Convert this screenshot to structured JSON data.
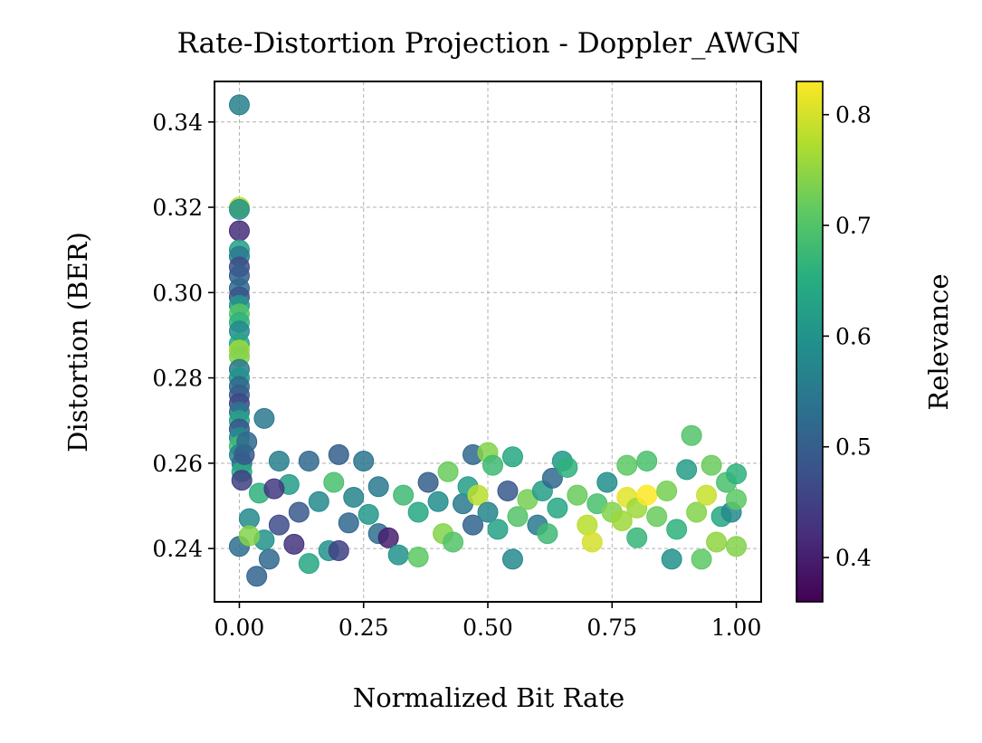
{
  "chart_data": {
    "type": "scatter",
    "title": "Rate-Distortion Projection - Doppler_AWGN",
    "xlabel": "Normalized Bit Rate",
    "ylabel": "Distortion (BER)",
    "xlim": [
      -0.05,
      1.05
    ],
    "ylim": [
      0.2275,
      0.3495
    ],
    "xticks": [
      "0.00",
      "0.25",
      "0.50",
      "0.75",
      "1.00"
    ],
    "yticks": [
      "0.24",
      "0.26",
      "0.28",
      "0.30",
      "0.32",
      "0.34"
    ],
    "grid": true,
    "colorbar": {
      "label": "Relevance",
      "colormap": "viridis",
      "range": [
        0.36,
        0.83
      ],
      "ticks": [
        "0.4",
        "0.5",
        "0.6",
        "0.7",
        "0.8"
      ]
    },
    "points_summary": "Dense band of points at distortion 0.24–0.26 across rate 0–1; vertical column at rate ≈ 0 from 0.24 up to 0.344.",
    "points": [
      [
        0.0,
        0.344,
        0.56
      ],
      [
        0.0,
        0.32,
        0.78
      ],
      [
        0.0,
        0.3195,
        0.6
      ],
      [
        0.0,
        0.3145,
        0.42
      ],
      [
        0.0,
        0.31,
        0.62
      ],
      [
        0.0,
        0.3085,
        0.55
      ],
      [
        0.0,
        0.306,
        0.47
      ],
      [
        0.0,
        0.304,
        0.5
      ],
      [
        0.0,
        0.301,
        0.52
      ],
      [
        0.0,
        0.299,
        0.48
      ],
      [
        0.0,
        0.297,
        0.61
      ],
      [
        0.0,
        0.295,
        0.7
      ],
      [
        0.0,
        0.293,
        0.66
      ],
      [
        0.0,
        0.291,
        0.58
      ],
      [
        0.0,
        0.288,
        0.64
      ],
      [
        0.0,
        0.2865,
        0.76
      ],
      [
        0.0,
        0.285,
        0.74
      ],
      [
        0.0,
        0.282,
        0.55
      ],
      [
        0.0,
        0.28,
        0.6
      ],
      [
        0.0,
        0.278,
        0.52
      ],
      [
        0.0,
        0.276,
        0.5
      ],
      [
        0.0,
        0.274,
        0.46
      ],
      [
        0.0,
        0.272,
        0.54
      ],
      [
        0.0,
        0.27,
        0.63
      ],
      [
        0.0,
        0.268,
        0.48
      ],
      [
        0.0,
        0.266,
        0.59
      ],
      [
        0.0,
        0.264,
        0.68
      ],
      [
        0.0,
        0.262,
        0.57
      ],
      [
        0.005,
        0.26,
        0.53
      ],
      [
        0.005,
        0.258,
        0.65
      ],
      [
        0.005,
        0.256,
        0.45
      ],
      [
        0.01,
        0.262,
        0.49
      ],
      [
        0.015,
        0.265,
        0.52
      ],
      [
        0.05,
        0.2705,
        0.55
      ],
      [
        0.0,
        0.2405,
        0.53
      ],
      [
        0.02,
        0.247,
        0.58
      ],
      [
        0.035,
        0.2335,
        0.51
      ],
      [
        0.06,
        0.2375,
        0.52
      ],
      [
        0.05,
        0.242,
        0.6
      ],
      [
        0.02,
        0.243,
        0.74
      ],
      [
        0.08,
        0.2455,
        0.47
      ],
      [
        0.11,
        0.241,
        0.43
      ],
      [
        0.14,
        0.2365,
        0.64
      ],
      [
        0.18,
        0.2395,
        0.6
      ],
      [
        0.2,
        0.2395,
        0.45
      ],
      [
        0.22,
        0.246,
        0.52
      ],
      [
        0.08,
        0.2605,
        0.56
      ],
      [
        0.14,
        0.2605,
        0.52
      ],
      [
        0.2,
        0.262,
        0.5
      ],
      [
        0.25,
        0.2605,
        0.54
      ],
      [
        0.1,
        0.255,
        0.62
      ],
      [
        0.16,
        0.251,
        0.58
      ],
      [
        0.04,
        0.253,
        0.66
      ],
      [
        0.12,
        0.2485,
        0.49
      ],
      [
        0.07,
        0.254,
        0.44
      ],
      [
        0.19,
        0.2555,
        0.69
      ],
      [
        0.23,
        0.252,
        0.57
      ],
      [
        0.26,
        0.248,
        0.61
      ],
      [
        0.28,
        0.2435,
        0.53
      ],
      [
        0.3,
        0.2425,
        0.4
      ],
      [
        0.32,
        0.2385,
        0.6
      ],
      [
        0.28,
        0.2545,
        0.55
      ],
      [
        0.33,
        0.2525,
        0.68
      ],
      [
        0.36,
        0.2485,
        0.64
      ],
      [
        0.36,
        0.238,
        0.71
      ],
      [
        0.38,
        0.2555,
        0.5
      ],
      [
        0.4,
        0.251,
        0.59
      ],
      [
        0.41,
        0.2435,
        0.74
      ],
      [
        0.42,
        0.258,
        0.72
      ],
      [
        0.43,
        0.2415,
        0.7
      ],
      [
        0.45,
        0.2505,
        0.55
      ],
      [
        0.46,
        0.2545,
        0.62
      ],
      [
        0.47,
        0.2455,
        0.51
      ],
      [
        0.48,
        0.2525,
        0.78
      ],
      [
        0.47,
        0.262,
        0.52
      ],
      [
        0.5,
        0.2625,
        0.74
      ],
      [
        0.51,
        0.2595,
        0.68
      ],
      [
        0.5,
        0.2485,
        0.57
      ],
      [
        0.52,
        0.2445,
        0.63
      ],
      [
        0.54,
        0.2535,
        0.49
      ],
      [
        0.55,
        0.2615,
        0.64
      ],
      [
        0.55,
        0.2375,
        0.58
      ],
      [
        0.56,
        0.2475,
        0.7
      ],
      [
        0.58,
        0.2515,
        0.73
      ],
      [
        0.6,
        0.2455,
        0.55
      ],
      [
        0.61,
        0.2535,
        0.62
      ],
      [
        0.62,
        0.2435,
        0.68
      ],
      [
        0.63,
        0.2565,
        0.52
      ],
      [
        0.64,
        0.2495,
        0.64
      ],
      [
        0.65,
        0.2605,
        0.61
      ],
      [
        0.66,
        0.259,
        0.66
      ],
      [
        0.68,
        0.2525,
        0.72
      ],
      [
        0.7,
        0.2455,
        0.78
      ],
      [
        0.71,
        0.2415,
        0.8
      ],
      [
        0.72,
        0.2505,
        0.69
      ],
      [
        0.74,
        0.2555,
        0.59
      ],
      [
        0.75,
        0.2485,
        0.74
      ],
      [
        0.77,
        0.2465,
        0.76
      ],
      [
        0.78,
        0.2595,
        0.71
      ],
      [
        0.78,
        0.252,
        0.81
      ],
      [
        0.8,
        0.2495,
        0.76
      ],
      [
        0.8,
        0.2425,
        0.67
      ],
      [
        0.82,
        0.2605,
        0.69
      ],
      [
        0.82,
        0.2525,
        0.83
      ],
      [
        0.84,
        0.2475,
        0.72
      ],
      [
        0.86,
        0.2535,
        0.73
      ],
      [
        0.87,
        0.2375,
        0.6
      ],
      [
        0.88,
        0.2445,
        0.66
      ],
      [
        0.9,
        0.2585,
        0.62
      ],
      [
        0.91,
        0.2665,
        0.7
      ],
      [
        0.92,
        0.2485,
        0.74
      ],
      [
        0.93,
        0.2375,
        0.71
      ],
      [
        0.94,
        0.2525,
        0.79
      ],
      [
        0.95,
        0.2595,
        0.72
      ],
      [
        0.96,
        0.2415,
        0.75
      ],
      [
        0.97,
        0.2475,
        0.64
      ],
      [
        0.98,
        0.2555,
        0.69
      ],
      [
        0.99,
        0.2485,
        0.58
      ],
      [
        1.0,
        0.2575,
        0.66
      ],
      [
        1.0,
        0.2515,
        0.71
      ],
      [
        1.0,
        0.2405,
        0.74
      ]
    ]
  }
}
